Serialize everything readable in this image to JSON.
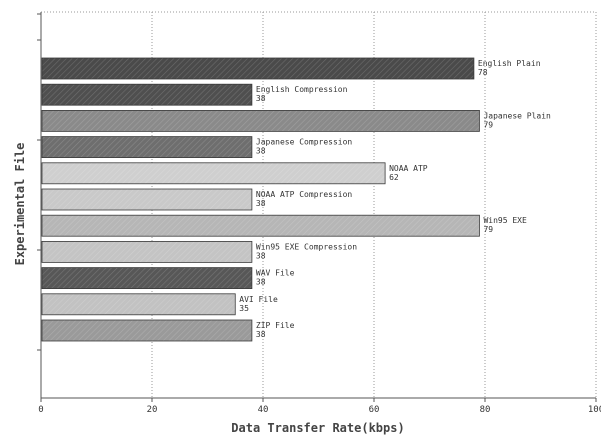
{
  "chart_data": {
    "type": "bar",
    "orientation": "horizontal",
    "title": "",
    "xlabel": "Data Transfer Rate(kbps)",
    "ylabel": "Experimental File",
    "xlim": [
      0,
      100
    ],
    "xticks": [
      "0",
      "20",
      "40",
      "60",
      "80",
      "100"
    ],
    "grid": true,
    "legend": "none",
    "categories": [
      "English Plain",
      "English Compression",
      "Japanese Plain",
      "Japanese Compression",
      "NOAA ATP",
      "NOAA ATP Compression",
      "Win95 EXE",
      "Win95 EXE Compression",
      "WAV File",
      "AVI File",
      "ZIP File"
    ],
    "values": [
      78,
      38,
      79,
      38,
      62,
      38,
      79,
      38,
      38,
      35,
      38
    ],
    "value_labels": [
      "78",
      "38",
      "79",
      "38",
      "62",
      "38",
      "79",
      "38",
      "38",
      "35",
      "38"
    ],
    "bar_colors": [
      "#4a4a4a",
      "#4f4f4f",
      "#8a8a8a",
      "#6e6e6e",
      "#cfcfcf",
      "#c9c9c9",
      "#b6b6b6",
      "#c4c4c4",
      "#575757",
      "#c2c2c2",
      "#9a9a9a"
    ]
  }
}
